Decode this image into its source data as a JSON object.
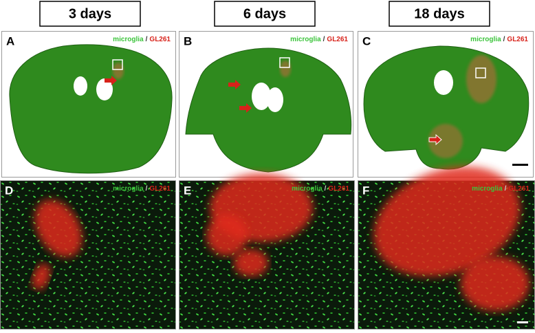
{
  "headers": [
    "3 days",
    "6 days",
    "18 days"
  ],
  "panels": [
    {
      "label": "A",
      "green": "microglia",
      "slash": "/",
      "red": "GL261"
    },
    {
      "label": "B",
      "green": "microglia",
      "slash": "/",
      "red": "GL261"
    },
    {
      "label": "C",
      "green": "microglia",
      "slash": "/",
      "red": "GL261"
    },
    {
      "label": "D",
      "green": "microglia",
      "slash": "/",
      "red": "GL261"
    },
    {
      "label": "E",
      "green": "microglia",
      "slash": "/",
      "red": "GL261"
    },
    {
      "label": "F",
      "green": "microglia",
      "slash": "/",
      "red": "GL261"
    }
  ]
}
